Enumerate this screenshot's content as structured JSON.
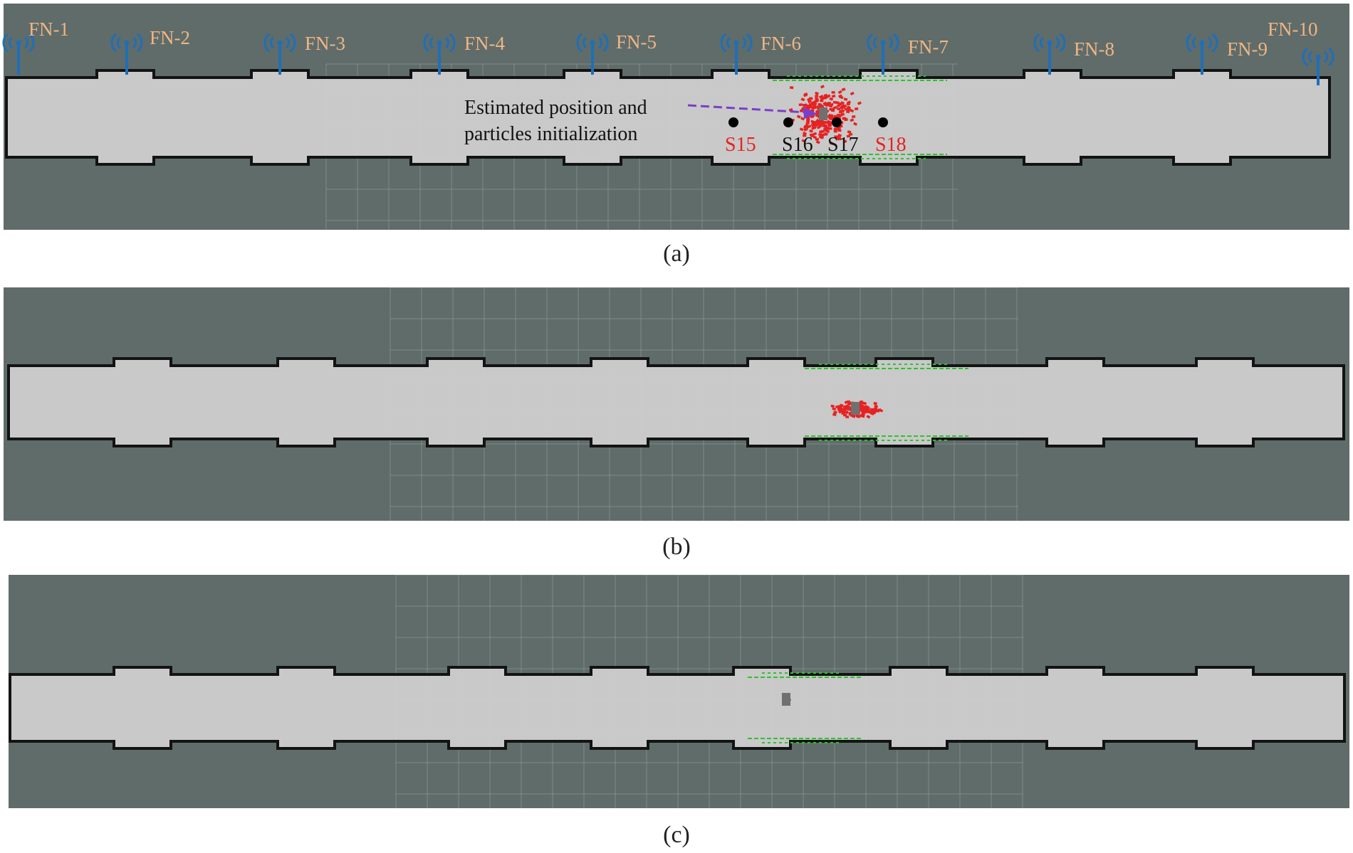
{
  "colors": {
    "background": "#5f6c6a",
    "floor": "#cdcdcd",
    "wall": "#111111",
    "grid": "#8a9896",
    "fog_node": "#1f6fb8",
    "fog_label": "#f0b583",
    "particle": "#e62222",
    "laser": "#2ec22e",
    "robot": "#707070",
    "arrow": "#7a3fc8",
    "station_marker": "#000000",
    "station_label_red": "#e62222",
    "station_label_black": "#111111"
  },
  "fog_nodes": [
    {
      "label": "FN-1"
    },
    {
      "label": "FN-2"
    },
    {
      "label": "FN-3"
    },
    {
      "label": "FN-4"
    },
    {
      "label": "FN-5"
    },
    {
      "label": "FN-6"
    },
    {
      "label": "FN-7"
    },
    {
      "label": "FN-8"
    },
    {
      "label": "FN-9"
    },
    {
      "label": "FN-10"
    }
  ],
  "fog_node_icon": "wifi-antenna-icon",
  "stations": [
    {
      "label": "S15",
      "label_color": "red"
    },
    {
      "label": "S16",
      "label_color": "black"
    },
    {
      "label": "S17",
      "label_color": "black"
    },
    {
      "label": "S18",
      "label_color": "red"
    }
  ],
  "annotation": {
    "line1": "Estimated position and",
    "line2": "particles initialization"
  },
  "panels": [
    {
      "caption": "(a)",
      "particle_spread": "wide"
    },
    {
      "caption": "(b)",
      "particle_spread": "medium"
    },
    {
      "caption": "(c)",
      "particle_spread": "converged"
    }
  ]
}
